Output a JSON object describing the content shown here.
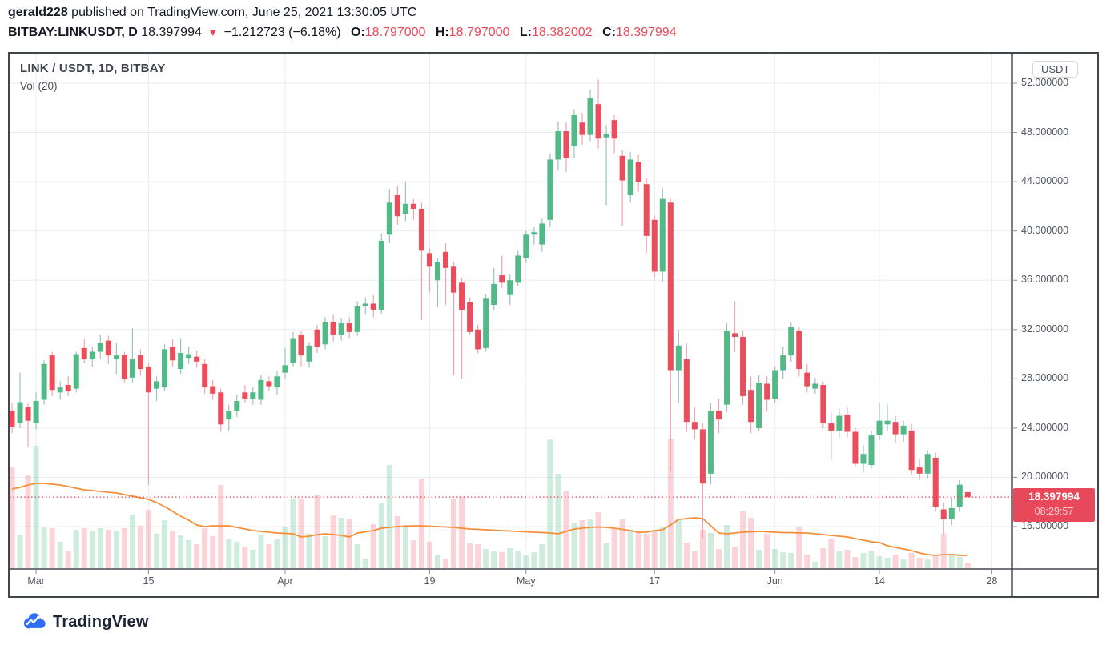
{
  "header": {
    "line1": {
      "user": "gerald228",
      "rest": " published on TradingView.com, June 25, 2021 13:30:05 UTC"
    },
    "line2": {
      "symbol": "BITBAY:LINKUSDT, D",
      "price": "18.397994",
      "arrow": "▼",
      "change": "−1.212723 (−6.18%)",
      "ohlc": [
        {
          "label": "O:",
          "value": "18.797000"
        },
        {
          "label": "H:",
          "value": "18.797000"
        },
        {
          "label": "L:",
          "value": "18.382002"
        },
        {
          "label": "C:",
          "value": "18.397994"
        }
      ]
    }
  },
  "legend": {
    "title": "LINK / USDT, 1D, BITBAY",
    "indicator": "Vol (20)"
  },
  "price_axis": {
    "currency": "USDT",
    "ticks": [
      {
        "value": 52,
        "label": "52.000000"
      },
      {
        "value": 48,
        "label": "48.000000"
      },
      {
        "value": 44,
        "label": "44.000000"
      },
      {
        "value": 40,
        "label": "40.000000"
      },
      {
        "value": 36,
        "label": "36.000000"
      },
      {
        "value": 32,
        "label": "32.000000"
      },
      {
        "value": 28,
        "label": "28.000000"
      },
      {
        "value": 24,
        "label": "24.000000"
      },
      {
        "value": 20,
        "label": "20.000000"
      },
      {
        "value": 16,
        "label": "16.000000"
      }
    ],
    "last_price": "18.397994",
    "countdown": "08:29:57"
  },
  "time_axis": {
    "ticks": [
      {
        "label": "Mar",
        "day_index": 3
      },
      {
        "label": "15",
        "day_index": 17
      },
      {
        "label": "Apr",
        "day_index": 34
      },
      {
        "label": "19",
        "day_index": 52
      },
      {
        "label": "May",
        "day_index": 64
      },
      {
        "label": "17",
        "day_index": 80
      },
      {
        "label": "Jun",
        "day_index": 95
      },
      {
        "label": "14",
        "day_index": 108
      },
      {
        "label": "28",
        "day_index": 122
      }
    ]
  },
  "footer": {
    "brand": "TradingView"
  },
  "colors": {
    "up": "#53b987",
    "down": "#eb4d5c",
    "up_wick": "#9cc2bc",
    "down_wick": "#f2a4ad",
    "vol_up": "rgba(83,185,135,0.28)",
    "vol_down": "rgba(235,77,92,0.24)",
    "ma_line": "#f78f38",
    "accent_red": "#e8495a",
    "grid": "#e9edf2",
    "frame": "#41454e",
    "tick": "#8a8e98"
  },
  "chart_data": {
    "type": "candlestick",
    "symbol": "LINK/USDT",
    "exchange": "BITBAY",
    "interval": "1D",
    "start_date": "2021-02-26",
    "title": "LINK / USDT, 1D, BITBAY",
    "indicator": "Vol (20)",
    "ylim": [
      14,
      55
    ],
    "last_close": 18.397994,
    "candles": [
      [
        25.4,
        26.0,
        23.6,
        24.1
      ],
      [
        24.4,
        28.5,
        24.0,
        26.1
      ],
      [
        25.7,
        26.0,
        22.5,
        24.6
      ],
      [
        24.4,
        26.9,
        23.9,
        26.2
      ],
      [
        26.3,
        29.5,
        25.9,
        29.2
      ],
      [
        29.9,
        30.2,
        26.6,
        27.1
      ],
      [
        26.9,
        27.8,
        26.3,
        27.3
      ],
      [
        27.5,
        28.2,
        26.6,
        27.0
      ],
      [
        27.2,
        30.2,
        26.9,
        30.0
      ],
      [
        30.5,
        31.2,
        29.3,
        29.6
      ],
      [
        29.6,
        30.6,
        29.0,
        30.2
      ],
      [
        30.2,
        31.6,
        29.6,
        30.9
      ],
      [
        31.1,
        31.5,
        29.2,
        29.9
      ],
      [
        29.6,
        30.9,
        28.4,
        29.9
      ],
      [
        29.9,
        30.2,
        27.7,
        28.0
      ],
      [
        28.1,
        32.1,
        27.7,
        29.6
      ],
      [
        29.9,
        30.4,
        28.3,
        28.8
      ],
      [
        29.0,
        29.3,
        19.4,
        26.9
      ],
      [
        27.2,
        28.2,
        26.2,
        27.8
      ],
      [
        27.3,
        30.8,
        27.0,
        30.4
      ],
      [
        30.6,
        31.2,
        29.0,
        29.5
      ],
      [
        28.8,
        31.3,
        28.4,
        30.1
      ],
      [
        29.7,
        30.6,
        29.2,
        30.0
      ],
      [
        29.8,
        30.3,
        28.9,
        29.4
      ],
      [
        29.2,
        29.6,
        26.8,
        27.3
      ],
      [
        27.4,
        27.9,
        26.3,
        26.8
      ],
      [
        26.9,
        27.2,
        23.7,
        24.3
      ],
      [
        24.7,
        25.9,
        23.8,
        25.4
      ],
      [
        25.4,
        26.7,
        24.9,
        26.2
      ],
      [
        26.9,
        27.5,
        26.0,
        26.4
      ],
      [
        26.4,
        27.3,
        25.9,
        26.9
      ],
      [
        26.3,
        28.3,
        25.9,
        27.9
      ],
      [
        27.8,
        28.2,
        27.0,
        27.4
      ],
      [
        27.3,
        28.6,
        26.7,
        28.2
      ],
      [
        28.5,
        30.5,
        28.0,
        29.1
      ],
      [
        29.3,
        31.8,
        29.0,
        31.3
      ],
      [
        31.6,
        31.9,
        29.0,
        29.9
      ],
      [
        29.4,
        31.0,
        28.9,
        30.7
      ],
      [
        32.0,
        32.4,
        30.1,
        30.6
      ],
      [
        30.8,
        33.0,
        30.4,
        32.6
      ],
      [
        32.6,
        33.2,
        31.0,
        31.6
      ],
      [
        31.6,
        32.9,
        31.1,
        32.5
      ],
      [
        32.5,
        33.0,
        31.3,
        31.8
      ],
      [
        31.8,
        34.3,
        31.5,
        33.9
      ],
      [
        33.9,
        34.6,
        33.2,
        34.1
      ],
      [
        34.1,
        34.8,
        33.0,
        33.6
      ],
      [
        33.6,
        39.8,
        33.3,
        39.2
      ],
      [
        39.7,
        43.4,
        39.0,
        42.3
      ],
      [
        42.9,
        43.7,
        40.5,
        41.2
      ],
      [
        41.4,
        44.0,
        40.8,
        42.2
      ],
      [
        42.2,
        42.6,
        40.9,
        41.8
      ],
      [
        41.8,
        42.3,
        32.8,
        38.4
      ],
      [
        38.2,
        38.6,
        35.0,
        37.1
      ],
      [
        36.0,
        37.8,
        33.8,
        37.5
      ],
      [
        38.3,
        39.0,
        34.0,
        37.0
      ],
      [
        37.1,
        37.5,
        28.3,
        35.0
      ],
      [
        35.8,
        36.2,
        28.0,
        33.6
      ],
      [
        34.2,
        34.6,
        31.6,
        31.8
      ],
      [
        32.0,
        32.4,
        30.1,
        30.4
      ],
      [
        30.5,
        34.9,
        30.2,
        34.5
      ],
      [
        34.0,
        37.0,
        33.6,
        35.7
      ],
      [
        36.4,
        38.0,
        35.4,
        35.8
      ],
      [
        34.8,
        36.5,
        34.0,
        36.0
      ],
      [
        35.8,
        38.4,
        35.5,
        38.0
      ],
      [
        37.8,
        40.0,
        37.4,
        39.7
      ],
      [
        39.7,
        40.3,
        38.9,
        39.9
      ],
      [
        38.9,
        41.0,
        38.3,
        40.6
      ],
      [
        40.9,
        46.3,
        40.3,
        45.8
      ],
      [
        45.8,
        48.9,
        44.9,
        48.1
      ],
      [
        48.1,
        48.8,
        44.8,
        45.9
      ],
      [
        46.9,
        49.9,
        45.9,
        49.4
      ],
      [
        48.8,
        49.6,
        47.0,
        47.8
      ],
      [
        47.8,
        51.5,
        47.3,
        50.8
      ],
      [
        50.3,
        52.3,
        46.7,
        47.5
      ],
      [
        47.6,
        48.6,
        42.1,
        47.9
      ],
      [
        49.0,
        49.4,
        46.3,
        47.5
      ],
      [
        46.1,
        46.6,
        40.4,
        44.1
      ],
      [
        42.9,
        46.4,
        42.3,
        45.8
      ],
      [
        45.6,
        46.2,
        43.2,
        44.0
      ],
      [
        43.8,
        44.3,
        38.2,
        39.6
      ],
      [
        40.9,
        41.2,
        36.2,
        36.7
      ],
      [
        36.7,
        43.5,
        35.9,
        42.6
      ],
      [
        42.3,
        42.6,
        20.5,
        28.7
      ],
      [
        28.7,
        32.0,
        26.0,
        30.7
      ],
      [
        29.6,
        30.9,
        23.7,
        24.5
      ],
      [
        24.5,
        25.7,
        23.1,
        23.9
      ],
      [
        23.9,
        24.4,
        15.1,
        19.5
      ],
      [
        20.3,
        26.0,
        19.4,
        25.4
      ],
      [
        25.4,
        26.4,
        23.6,
        24.7
      ],
      [
        25.9,
        32.5,
        25.3,
        31.9
      ],
      [
        31.7,
        34.3,
        30.2,
        31.4
      ],
      [
        31.4,
        31.9,
        25.9,
        26.6
      ],
      [
        27.1,
        28.2,
        23.6,
        24.5
      ],
      [
        24.0,
        28.3,
        23.8,
        27.7
      ],
      [
        27.6,
        28.2,
        25.4,
        26.3
      ],
      [
        26.4,
        29.0,
        26.0,
        28.7
      ],
      [
        28.7,
        30.6,
        28.0,
        29.9
      ],
      [
        29.9,
        32.6,
        29.4,
        32.2
      ],
      [
        31.9,
        32.2,
        28.2,
        28.8
      ],
      [
        28.5,
        29.2,
        26.9,
        27.4
      ],
      [
        27.2,
        28.1,
        26.8,
        27.6
      ],
      [
        27.5,
        27.8,
        24.0,
        24.4
      ],
      [
        24.4,
        25.3,
        21.4,
        23.8
      ],
      [
        23.8,
        25.6,
        23.2,
        25.0
      ],
      [
        25.1,
        25.7,
        23.2,
        23.7
      ],
      [
        23.7,
        24.0,
        20.8,
        21.1
      ],
      [
        21.1,
        22.6,
        20.4,
        21.9
      ],
      [
        21.0,
        23.8,
        20.7,
        23.4
      ],
      [
        23.4,
        26.0,
        23.0,
        24.6
      ],
      [
        24.3,
        25.9,
        23.8,
        24.6
      ],
      [
        24.5,
        25.0,
        22.8,
        23.5
      ],
      [
        23.5,
        24.6,
        22.9,
        24.2
      ],
      [
        23.8,
        24.3,
        20.2,
        20.6
      ],
      [
        20.8,
        21.5,
        19.8,
        20.3
      ],
      [
        20.3,
        22.2,
        19.9,
        21.9
      ],
      [
        21.6,
        22.0,
        17.2,
        17.6
      ],
      [
        17.4,
        18.0,
        15.3,
        16.6
      ],
      [
        16.6,
        18.4,
        16.1,
        17.5
      ],
      [
        17.6,
        19.8,
        17.2,
        19.4
      ],
      [
        18.797,
        18.797,
        18.382,
        18.398
      ]
    ],
    "volume": [
      126,
      42,
      116,
      153,
      51,
      50,
      33,
      22,
      48,
      50,
      46,
      50,
      48,
      46,
      50,
      67,
      53,
      73,
      43,
      60,
      46,
      41,
      35,
      30,
      50,
      40,
      104,
      36,
      33,
      26,
      23,
      41,
      30,
      36,
      52,
      86,
      86,
      43,
      92,
      40,
      66,
      63,
      61,
      30,
      12,
      55,
      82,
      129,
      65,
      54,
      35,
      112,
      33,
      17,
      12,
      86,
      90,
      31,
      30,
      24,
      21,
      20,
      25,
      22,
      16,
      20,
      30,
      161,
      118,
      96,
      57,
      60,
      61,
      70,
      32,
      50,
      62,
      48,
      45,
      43,
      46,
      51,
      162,
      61,
      32,
      21,
      48,
      44,
      24,
      54,
      27,
      71,
      63,
      23,
      43,
      24,
      20,
      19,
      52,
      17,
      8,
      25,
      37,
      21,
      23,
      14,
      19,
      22,
      15,
      13,
      17,
      11,
      19,
      13,
      11,
      17,
      43,
      16,
      14,
      6
    ],
    "vol_ma20": [
      99,
      101,
      104,
      106,
      106,
      105,
      104,
      102,
      100,
      98,
      97,
      96,
      95,
      94,
      92,
      90,
      88,
      86,
      82,
      77,
      71,
      65,
      60,
      54,
      52,
      53,
      53,
      53,
      51,
      49,
      47,
      46,
      45,
      44,
      43.5,
      43,
      39,
      40,
      42,
      43,
      42,
      41,
      39,
      44,
      45.5,
      47,
      50,
      51,
      52,
      52.5,
      53,
      53,
      52.5,
      52,
      51.5,
      51,
      50,
      49,
      48.5,
      48,
      47.5,
      47,
      46.5,
      46,
      45.5,
      45,
      44.5,
      44,
      43,
      46,
      49,
      50,
      51,
      51.5,
      51,
      50,
      48.5,
      47,
      45,
      45,
      47,
      48,
      54,
      61,
      62,
      63,
      62,
      53,
      44,
      43,
      44,
      45,
      45.5,
      46,
      45.5,
      45,
      44.5,
      44.5,
      44,
      44,
      43,
      42,
      41,
      40,
      39,
      37,
      35,
      33,
      32,
      28,
      26,
      24,
      22,
      19,
      17,
      16,
      17,
      17,
      16,
      16
    ]
  }
}
